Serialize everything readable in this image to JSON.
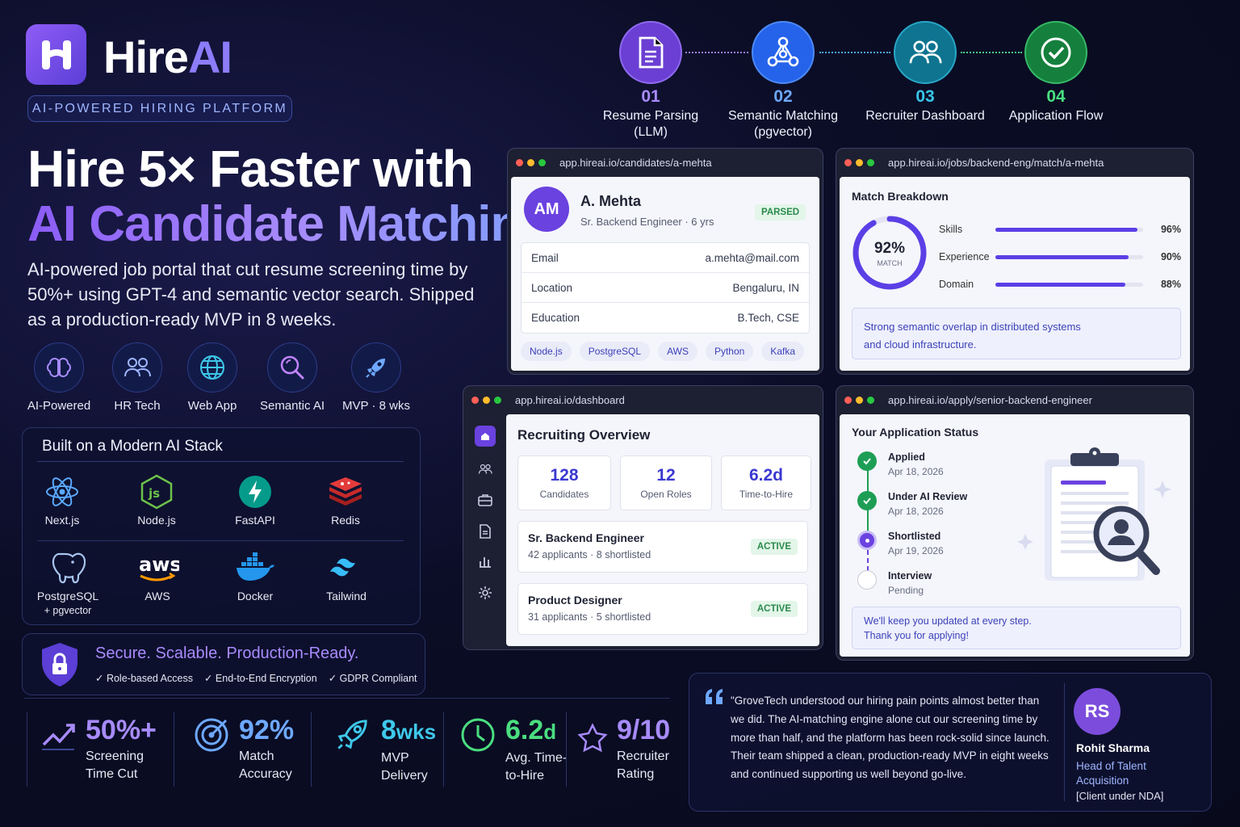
{
  "brand": {
    "name_main": "Hire",
    "name_accent": "AI",
    "tagline": "AI-POWERED HIRING PLATFORM"
  },
  "hero": {
    "headline_line1": "Hire 5× Faster with",
    "headline_line2": "AI Candidate Matching.",
    "description": "AI-powered job portal that cut resume screening time by 50%+ using GPT-4 and semantic vector search. Shipped as a production-ready MVP in 8 weeks."
  },
  "tags": [
    {
      "label": "AI-Powered",
      "icon": "brain-icon"
    },
    {
      "label": "HR Tech",
      "icon": "people-icon"
    },
    {
      "label": "Web App",
      "icon": "globe-icon"
    },
    {
      "label": "Semantic AI",
      "icon": "magnifier-icon"
    },
    {
      "label": "MVP · 8 wks",
      "icon": "rocket-icon"
    }
  ],
  "stack": {
    "title": "Built on a Modern AI Stack",
    "items": [
      {
        "label": "Next.js",
        "icon": "react-atom-icon"
      },
      {
        "label": "Node.js",
        "icon": "nodejs-icon"
      },
      {
        "label": "FastAPI",
        "icon": "fastapi-bolt-icon"
      },
      {
        "label": "Redis",
        "icon": "redis-icon"
      },
      {
        "label": "PostgreSQL",
        "label2": "+ pgvector",
        "icon": "postgresql-elephant-icon"
      },
      {
        "label": "AWS",
        "icon": "aws-icon"
      },
      {
        "label": "Docker",
        "icon": "docker-whale-icon"
      },
      {
        "label": "Tailwind",
        "icon": "tailwind-icon"
      }
    ]
  },
  "secure": {
    "title": "Secure. Scalable. Production-Ready.",
    "checks": [
      "Role-based Access",
      "End-to-End Encryption",
      "GDPR Compliant"
    ]
  },
  "stats": [
    {
      "value": "50%+",
      "unit": "",
      "label1": "Screening",
      "label2": "Time Cut",
      "color": "#a78bfa"
    },
    {
      "value": "92%",
      "unit": "",
      "label1": "Match",
      "label2": "Accuracy",
      "color": "#6ea8ff"
    },
    {
      "value": "8",
      "unit": "wks",
      "label1": "MVP",
      "label2": "Delivery",
      "color": "#3ec8ea"
    },
    {
      "value": "6.2",
      "unit": "d",
      "label1": "Avg. Time-",
      "label2": "to-Hire",
      "color": "#4ade80"
    },
    {
      "value": "9/10",
      "unit": "",
      "label1": "Recruiter",
      "label2": "Rating",
      "color": "#a78bfa"
    }
  ],
  "steps": [
    {
      "num": "01",
      "title1": "Resume Parsing",
      "title2": "(LLM)",
      "color": "#6b3fd3",
      "numColor": "#a88bff"
    },
    {
      "num": "02",
      "title1": "Semantic Matching",
      "title2": "(pgvector)",
      "color": "#2563eb",
      "numColor": "#6ea8ff"
    },
    {
      "num": "03",
      "title1": "Recruiter Dashboard",
      "title2": "",
      "color": "#0e7490",
      "numColor": "#38c6e8"
    },
    {
      "num": "04",
      "title1": "Application Flow",
      "title2": "",
      "color": "#15803d",
      "numColor": "#4ade80"
    }
  ],
  "candidate_window": {
    "url": "app.hireai.io/candidates/a-mehta",
    "initials": "AM",
    "name": "A. Mehta",
    "role": "Sr. Backend Engineer · 6 yrs",
    "badge": "PARSED",
    "fields": [
      {
        "label": "Email",
        "value": "a.mehta@mail.com"
      },
      {
        "label": "Location",
        "value": "Bengaluru, IN"
      },
      {
        "label": "Education",
        "value": "B.Tech, CSE"
      }
    ],
    "skills": [
      "Node.js",
      "PostgreSQL",
      "AWS",
      "Python",
      "Kafka"
    ]
  },
  "match_window": {
    "url": "app.hireai.io/jobs/backend-eng/match/a-mehta",
    "title": "Match Breakdown",
    "score": "92%",
    "score_value": 92,
    "score_label": "MATCH",
    "bars": [
      {
        "label": "Skills",
        "value": 96,
        "display": "96%"
      },
      {
        "label": "Experience",
        "value": 90,
        "display": "90%"
      },
      {
        "label": "Domain",
        "value": 88,
        "display": "88%"
      }
    ],
    "note_line1": "Strong semantic overlap in distributed systems",
    "note_line2": "and cloud infrastructure."
  },
  "dashboard_window": {
    "url": "app.hireai.io/dashboard",
    "title": "Recruiting Overview",
    "kpis": [
      {
        "value": "128",
        "label": "Candidates"
      },
      {
        "value": "12",
        "label": "Open Roles"
      },
      {
        "value": "6.2d",
        "label": "Time-to-Hire"
      }
    ],
    "jobs": [
      {
        "title": "Sr. Backend Engineer",
        "sub": "42 applicants · 8 shortlisted",
        "badge": "ACTIVE"
      },
      {
        "title": "Product Designer",
        "sub": "31 applicants · 5 shortlisted",
        "badge": "ACTIVE"
      }
    ]
  },
  "apply_window": {
    "url": "app.hireai.io/apply/senior-backend-engineer",
    "title": "Your Application Status",
    "timeline": [
      {
        "title": "Applied",
        "date": "Apr 18, 2026",
        "state": "done"
      },
      {
        "title": "Under AI Review",
        "date": "Apr 18, 2026",
        "state": "done"
      },
      {
        "title": "Shortlisted",
        "date": "Apr 19, 2026",
        "state": "current"
      },
      {
        "title": "Interview",
        "date": "Pending",
        "state": "pending"
      }
    ],
    "note_line1": "We'll keep you updated at every step.",
    "note_line2": "Thank you for applying!"
  },
  "testimonial": {
    "quote": "\"GroveTech understood our hiring pain points almost better than we did. The AI-matching engine alone cut our screening time by more than half, and the platform has been rock-solid since launch. Their team shipped a clean, production-ready MVP in eight weeks and continued supporting us well beyond go-live.",
    "initials": "RS",
    "name": "Rohit Sharma",
    "title1": "Head of Talent",
    "title2": "Acquisition",
    "note": "[Client under NDA]"
  }
}
